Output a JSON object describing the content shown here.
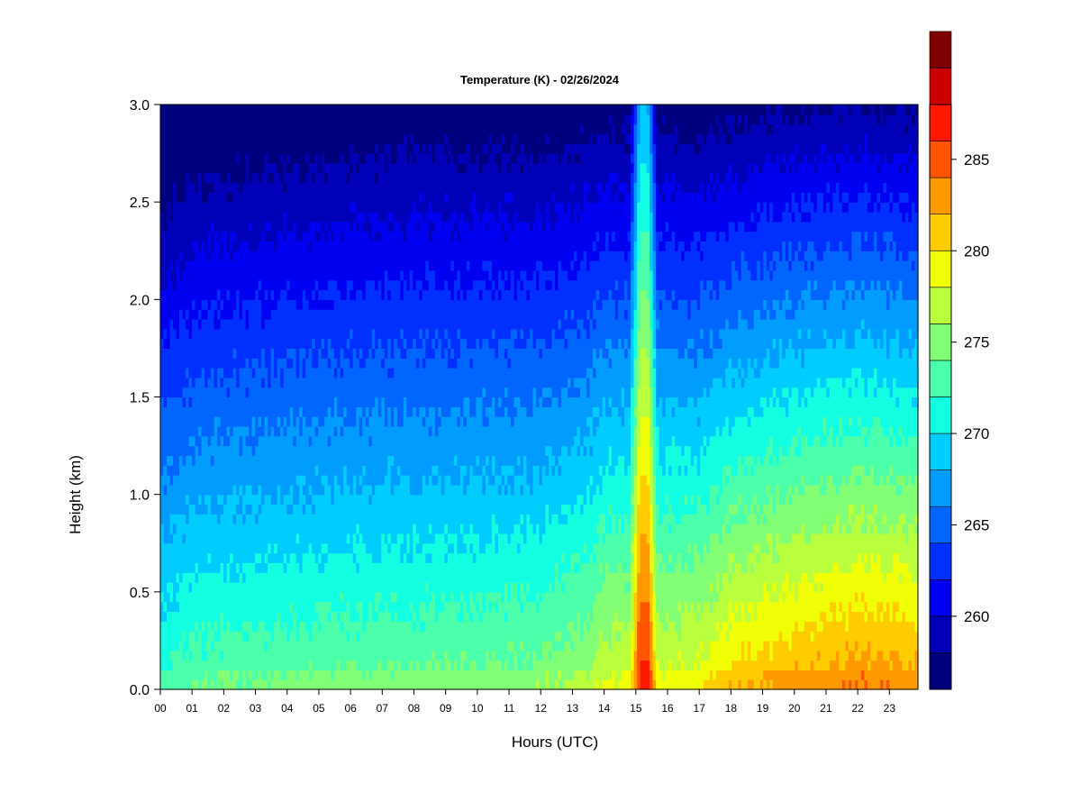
{
  "chart_data": {
    "type": "heatmap",
    "title": "Temperature (K) - 02/26/2024",
    "xlabel": "Hours (UTC)",
    "ylabel": "Height (km)",
    "xlim": [
      0,
      23.9
    ],
    "ylim": [
      0.0,
      3.0
    ],
    "x_ticks": [
      0,
      1,
      2,
      3,
      4,
      5,
      6,
      7,
      8,
      9,
      10,
      11,
      12,
      13,
      14,
      15,
      16,
      17,
      18,
      19,
      20,
      21,
      22,
      23
    ],
    "x_tick_labels": [
      "00",
      "01",
      "02",
      "03",
      "04",
      "05",
      "06",
      "07",
      "08",
      "09",
      "10",
      "11",
      "12",
      "13",
      "14",
      "15",
      "16",
      "17",
      "18",
      "19",
      "20",
      "21",
      "22",
      "23"
    ],
    "y_ticks": [
      0.0,
      0.5,
      1.0,
      1.5,
      2.0,
      2.5,
      3.0
    ],
    "y_tick_labels": [
      "0.0",
      "0.5",
      "1.0",
      "1.5",
      "2.0",
      "2.5",
      "3.0"
    ],
    "colorbar": {
      "label": "Temperature (K)",
      "min": 256,
      "max": 288,
      "step": 2,
      "ticks": [
        260,
        265,
        270,
        275,
        280,
        285
      ],
      "tick_labels": [
        "260",
        "265",
        "270",
        "275",
        "280",
        "285"
      ],
      "colors": [
        "#00007F",
        "#0000B8",
        "#0000F0",
        "#0030FF",
        "#0066FF",
        "#009CFF",
        "#00CCFF",
        "#14FFE2",
        "#4BFFAB",
        "#82FF74",
        "#B9FF3D",
        "#F0FF06",
        "#FFCC00",
        "#FF9900",
        "#FF5500",
        "#FF1800",
        "#CC0000",
        "#7F0000"
      ]
    },
    "time_profiles": [
      {
        "hour": 0,
        "surface_K": 272.5,
        "lapse_K_per_km": 6.0
      },
      {
        "hour": 1,
        "surface_K": 273.5,
        "lapse_K_per_km": 6.0
      },
      {
        "hour": 4,
        "surface_K": 274.0,
        "lapse_K_per_km": 6.0
      },
      {
        "hour": 8,
        "surface_K": 274.5,
        "lapse_K_per_km": 6.0
      },
      {
        "hour": 12,
        "surface_K": 275.0,
        "lapse_K_per_km": 6.2
      },
      {
        "hour": 13.5,
        "surface_K": 276.5,
        "lapse_K_per_km": 6.6
      },
      {
        "hour": 14,
        "surface_K": 278.0,
        "lapse_K_per_km": 7.0
      },
      {
        "hour": 16,
        "surface_K": 278.5,
        "lapse_K_per_km": 7.2
      },
      {
        "hour": 17,
        "surface_K": 279.0,
        "lapse_K_per_km": 7.5
      },
      {
        "hour": 18,
        "surface_K": 281.0,
        "lapse_K_per_km": 8.0
      },
      {
        "hour": 20,
        "surface_K": 282.5,
        "lapse_K_per_km": 8.3
      },
      {
        "hour": 22,
        "surface_K": 283.5,
        "lapse_K_per_km": 8.5
      },
      {
        "hour": 23.9,
        "surface_K": 283.0,
        "lapse_K_per_km": 8.5
      }
    ],
    "anomaly": {
      "hour_start": 14.8,
      "hour_end": 15.7,
      "peak_K": 287,
      "top_K": 268
    },
    "grid": false,
    "legend": "colorbar-right"
  }
}
